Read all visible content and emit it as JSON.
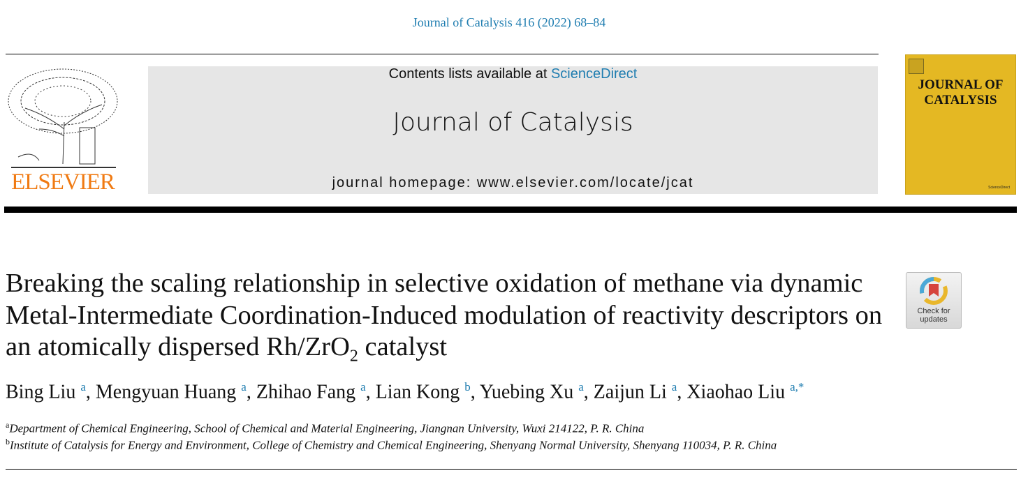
{
  "citation": "Journal of Catalysis 416 (2022) 68–84",
  "publisher": {
    "logo_text": "ELSEVIER",
    "logo_color": "#f07a12"
  },
  "banner": {
    "contents_prefix": "Contents lists available at ",
    "contents_link": "ScienceDirect",
    "journal_title": "Journal of Catalysis",
    "homepage": "journal homepage: www.elsevier.com/locate/jcat"
  },
  "cover": {
    "title_line1": "JOURNAL OF",
    "title_line2": "CATALYSIS",
    "footer": "ScienceDirect",
    "color": "#e4b823"
  },
  "article": {
    "title_main": "Breaking the scaling relationship in selective oxidation of methane via dynamic Metal-Intermediate Coordination-Induced modulation of reactivity descriptors on an atomically dispersed Rh/ZrO",
    "title_sub": "2",
    "title_end": " catalyst",
    "check_updates": {
      "line1": "Check for",
      "line2": "updates"
    },
    "authors": [
      {
        "name": "Bing Liu",
        "aff": "a"
      },
      {
        "name": "Mengyuan Huang",
        "aff": "a"
      },
      {
        "name": "Zhihao Fang",
        "aff": "a"
      },
      {
        "name": "Lian Kong",
        "aff": "b"
      },
      {
        "name": "Yuebing Xu",
        "aff": "a"
      },
      {
        "name": "Zaijun Li",
        "aff": "a"
      },
      {
        "name": "Xiaohao Liu",
        "aff": "a,*"
      }
    ],
    "affiliations": [
      {
        "label": "a",
        "text": "Department of Chemical Engineering, School of Chemical and Material Engineering, Jiangnan University, Wuxi 214122, P. R. China"
      },
      {
        "label": "b",
        "text": "Institute of Catalysis for Energy and Environment, College of Chemistry and Chemical Engineering, Shenyang Normal University, Shenyang 110034, P. R. China"
      }
    ]
  },
  "accent_color": "#1f7db0"
}
